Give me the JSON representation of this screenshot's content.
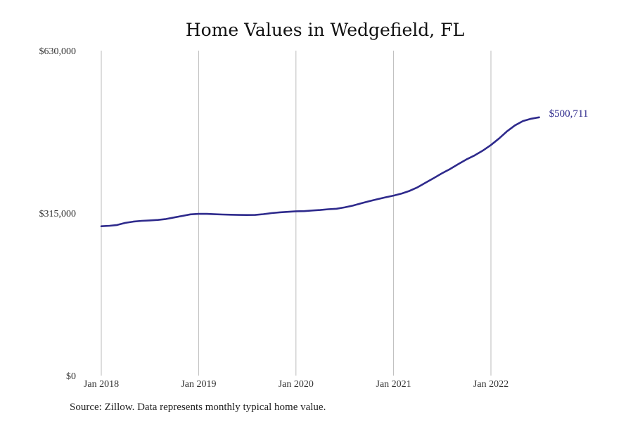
{
  "source_note": "Source: Zillow. Data represents monthly typical home value.",
  "colors": {
    "line": "#2e2a8c",
    "grid": "#bbbbbb",
    "text": "#333333"
  },
  "chart_data": {
    "type": "line",
    "title": "Home Values in Wedgefield, FL",
    "xlabel": "",
    "ylabel": "",
    "grid": "vertical",
    "ylim": [
      0,
      630000
    ],
    "y_ticks": [
      0,
      315000,
      630000
    ],
    "y_tick_labels": [
      "$0",
      "$315,000",
      "$630,000"
    ],
    "x_ticks": [
      "2018-01",
      "2019-01",
      "2020-01",
      "2021-01",
      "2022-01"
    ],
    "x_tick_labels": [
      "Jan 2018",
      "Jan 2019",
      "Jan 2020",
      "Jan 2021",
      "Jan 2022"
    ],
    "end_label": "$500,711",
    "series": [
      {
        "x": [
          "2018-01",
          "2018-02",
          "2018-03",
          "2018-04",
          "2018-05",
          "2018-06",
          "2018-07",
          "2018-08",
          "2018-09",
          "2018-10",
          "2018-11",
          "2018-12",
          "2019-01",
          "2019-02",
          "2019-03",
          "2019-04",
          "2019-05",
          "2019-06",
          "2019-07",
          "2019-08",
          "2019-09",
          "2019-10",
          "2019-11",
          "2019-12",
          "2020-01",
          "2020-02",
          "2020-03",
          "2020-04",
          "2020-05",
          "2020-06",
          "2020-07",
          "2020-08",
          "2020-09",
          "2020-10",
          "2020-11",
          "2020-12",
          "2021-01",
          "2021-02",
          "2021-03",
          "2021-04",
          "2021-05",
          "2021-06",
          "2021-07",
          "2021-08",
          "2021-09",
          "2021-10",
          "2021-11",
          "2021-12",
          "2022-01",
          "2022-02",
          "2022-03",
          "2022-04",
          "2022-05",
          "2022-06",
          "2022-07"
        ],
        "values": [
          289500,
          290500,
          292000,
          296000,
          298500,
          300000,
          300800,
          301800,
          303500,
          306500,
          309500,
          312500,
          313500,
          313500,
          312800,
          312300,
          311800,
          311500,
          311300,
          311500,
          313000,
          315000,
          316500,
          317500,
          318500,
          318800,
          320000,
          321000,
          322500,
          323500,
          326000,
          329500,
          334000,
          338000,
          342000,
          345500,
          349000,
          353000,
          358000,
          365000,
          374000,
          383000,
          392000,
          400500,
          410000,
          419000,
          427000,
          436000,
          447000,
          460000,
          473000,
          485000,
          493500,
          498000,
          500711
        ]
      }
    ]
  }
}
